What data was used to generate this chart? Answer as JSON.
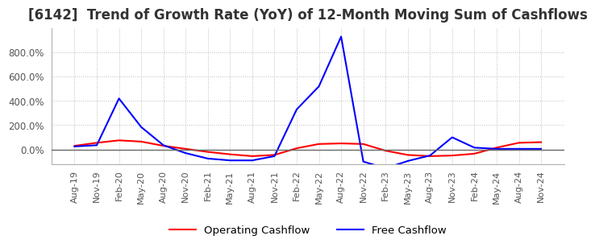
{
  "title": "[6142]  Trend of Growth Rate (YoY) of 12-Month Moving Sum of Cashflows",
  "title_fontsize": 12,
  "legend_labels": [
    "Operating Cashflow",
    "Free Cashflow"
  ],
  "legend_colors": [
    "#ff0000",
    "#0000ff"
  ],
  "x_labels": [
    "Aug-19",
    "Nov-19",
    "Feb-20",
    "May-20",
    "Aug-20",
    "Nov-20",
    "Feb-21",
    "May-21",
    "Aug-21",
    "Nov-21",
    "Feb-22",
    "May-22",
    "Aug-22",
    "Nov-22",
    "Feb-23",
    "May-23",
    "Aug-23",
    "Nov-23",
    "Feb-24",
    "May-24",
    "Aug-24",
    "Nov-24"
  ],
  "ylim": [
    -120,
    1000
  ],
  "yticks": [
    0.0,
    200.0,
    400.0,
    600.0,
    800.0
  ],
  "operating_cf": [
    30,
    55,
    75,
    65,
    30,
    5,
    -20,
    -40,
    -55,
    -45,
    10,
    45,
    50,
    45,
    -10,
    -45,
    -55,
    -50,
    -35,
    15,
    55,
    60
  ],
  "free_cf": [
    25,
    35,
    420,
    185,
    35,
    -30,
    -75,
    -90,
    -90,
    -55,
    330,
    520,
    930,
    -100,
    -155,
    -95,
    -50,
    100,
    15,
    5,
    5,
    5
  ],
  "background_color": "#ffffff",
  "grid_color": "#bbbbbb",
  "grid_style": ":",
  "plot_bg_color": "#ffffff"
}
